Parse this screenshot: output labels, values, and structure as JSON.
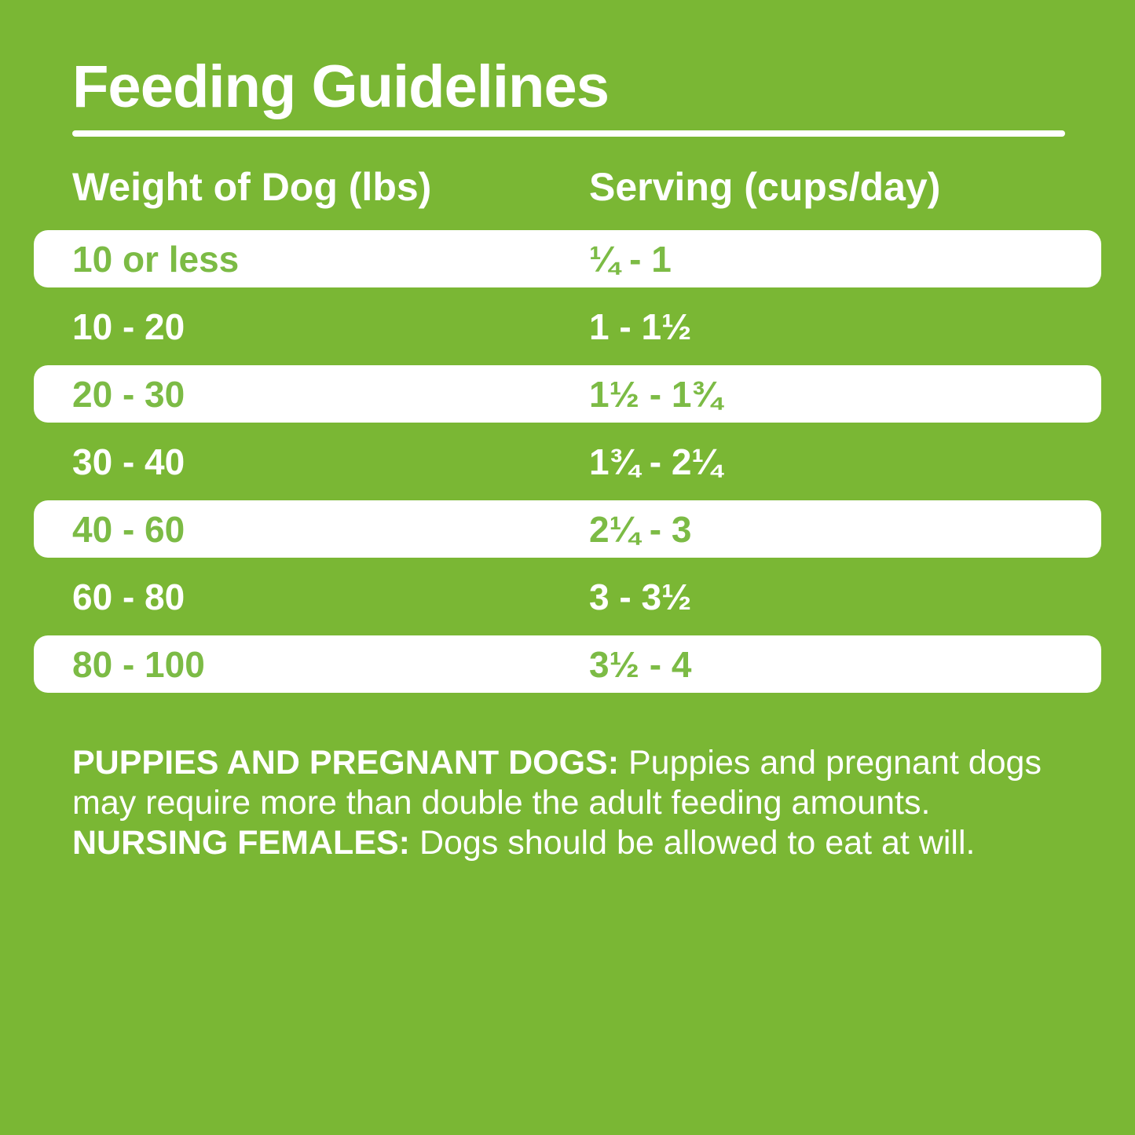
{
  "title": "Feeding Guidelines",
  "colors": {
    "background_green": "#7AB734",
    "row_text_green": "#7CBB45",
    "text_white": "#FFFFFF"
  },
  "table": {
    "headers": [
      {
        "label": "Weight of Dog (lbs)"
      },
      {
        "label": "Serving (cups/day)"
      }
    ],
    "rows": [
      {
        "weight": "10 or less",
        "serving": "¼ - 1",
        "highlighted": true
      },
      {
        "weight": "10 - 20",
        "serving": "1 - 1½",
        "highlighted": false
      },
      {
        "weight": "20 - 30",
        "serving": "1½ - 1¾",
        "highlighted": true
      },
      {
        "weight": "30 - 40",
        "serving": "1¾ - 2¼",
        "highlighted": false
      },
      {
        "weight": "40 - 60",
        "serving": "2¼ - 3",
        "highlighted": true
      },
      {
        "weight": "60 - 80",
        "serving": "3 - 3½",
        "highlighted": false
      },
      {
        "weight": "80 - 100",
        "serving": "3½ - 4",
        "highlighted": true
      }
    ]
  },
  "footnote": {
    "segments": [
      {
        "text": "PUPPIES AND PREGNANT DOGS: ",
        "bold": true
      },
      {
        "text": "Puppies and pregnant dogs may require more than double the adult feeding amounts. ",
        "bold": false
      },
      {
        "text": "NURSING FEMALES: ",
        "bold": true
      },
      {
        "text": "Dogs should be allowed to eat at will.",
        "bold": false
      }
    ]
  }
}
